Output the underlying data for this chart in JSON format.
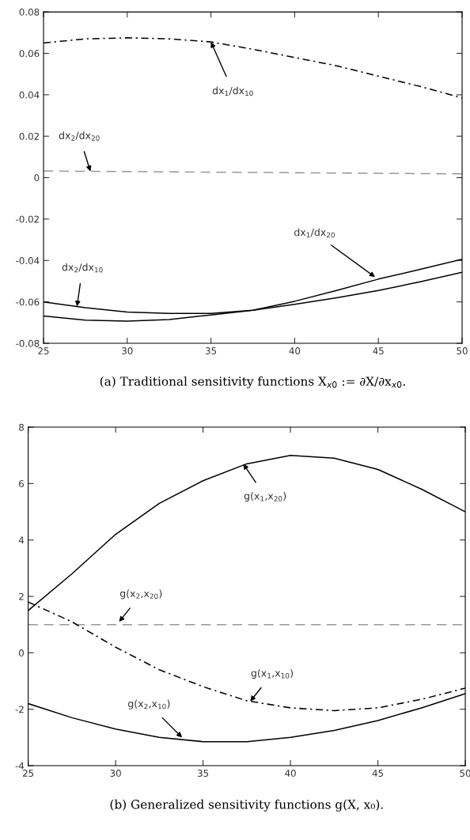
{
  "chart_data": [
    {
      "type": "line",
      "title": "(a) Traditional sensitivity functions X$_{x0}$ := ∂X/∂x$_{x0}$.",
      "xlim": [
        25,
        50
      ],
      "xticks": [
        25,
        30,
        35,
        40,
        45,
        50
      ],
      "ylim": [
        -0.08,
        0.08
      ],
      "yticks": [
        {
          "value": -0.08,
          "label": "-0.08"
        },
        {
          "value": -0.06,
          "label": "-0.06"
        },
        {
          "value": -0.04,
          "label": "-0.04"
        },
        {
          "value": -0.02,
          "label": "-0.02"
        },
        0,
        0.02,
        0.04,
        0.06,
        0.08
      ],
      "grid": false,
      "marker": "none",
      "series": [
        {
          "color": "#000000",
          "line_style": "dashdot",
          "x": [
            25,
            27.5,
            30,
            32.5,
            35,
            37.5,
            40,
            42.5,
            45,
            47.5,
            50
          ],
          "values": [
            0.065,
            0.067,
            0.0675,
            0.067,
            0.0655,
            0.062,
            0.058,
            0.054,
            0.049,
            0.044,
            0.0385
          ]
        },
        {
          "color": "#999999",
          "line_style": "dashed",
          "x": [
            25,
            50
          ],
          "values": [
            0.0032,
            0.0018
          ]
        },
        {
          "color": "#000000",
          "line_style": "solid",
          "x": [
            25,
            27.5,
            30,
            32.5,
            35,
            37.5,
            40,
            42.5,
            45,
            47.5,
            50
          ],
          "values": [
            -0.06,
            -0.0628,
            -0.0649,
            -0.0656,
            -0.0656,
            -0.064,
            -0.0612,
            -0.058,
            -0.0545,
            -0.0503,
            -0.0457
          ]
        },
        {
          "color": "#000000",
          "line_style": "solid",
          "x": [
            25,
            27.5,
            30,
            32.5,
            35,
            37.5,
            40,
            42.5,
            45,
            47.5,
            50
          ],
          "values": [
            -0.0668,
            -0.0688,
            -0.0693,
            -0.0685,
            -0.0663,
            -0.064,
            -0.0597,
            -0.0545,
            -0.049,
            -0.0443,
            -0.0394
          ]
        }
      ],
      "annotations": [
        {
          "text": "dx$_{1}$/dx$_{10}$",
          "x": 35,
          "y": 0.0655
        },
        {
          "text": "dx$_{2}$/dx$_{20}$",
          "x": 27.8,
          "y": 0.003
        },
        {
          "text": "dx$_{2}$/dx$_{10}$",
          "x": 27,
          "y": -0.0622
        },
        {
          "text": "dx$_{1}$/dx$_{20}$",
          "x": 44.8,
          "y": -0.048
        }
      ]
    },
    {
      "type": "line",
      "title": "(b) Generalized sensitivity functions g(X, x₀).",
      "xlim": [
        25,
        50
      ],
      "xticks": [
        25,
        30,
        35,
        40,
        45,
        50
      ],
      "ylim": [
        -4,
        8
      ],
      "yticks": [
        -4,
        -2,
        0,
        2,
        4,
        6,
        8
      ],
      "grid": false,
      "marker": "none",
      "series": [
        {
          "color": "#000000",
          "line_style": "solid",
          "x": [
            25,
            27.5,
            30,
            32.5,
            35,
            37.5,
            40,
            42.5,
            45,
            47.5,
            50
          ],
          "values": [
            1.5,
            2.8,
            4.2,
            5.3,
            6.1,
            6.7,
            7.0,
            6.9,
            6.5,
            5.8,
            5.0
          ]
        },
        {
          "color": "#999999",
          "line_style": "dashed",
          "x": [
            25,
            50
          ],
          "values": [
            1.0,
            1.0
          ]
        },
        {
          "color": "#000000",
          "line_style": "dashdot",
          "x": [
            25,
            27.5,
            30,
            32.5,
            35,
            37.5,
            40,
            42.5,
            45,
            47.5,
            50
          ],
          "values": [
            1.8,
            1.1,
            0.2,
            -0.6,
            -1.2,
            -1.7,
            -1.95,
            -2.05,
            -1.95,
            -1.65,
            -1.25
          ]
        },
        {
          "color": "#000000",
          "line_style": "solid",
          "x": [
            25,
            27.5,
            30,
            32.5,
            35,
            37.5,
            40,
            42.5,
            45,
            47.5,
            50
          ],
          "values": [
            -1.8,
            -2.3,
            -2.7,
            -3.0,
            -3.15,
            -3.15,
            -3.0,
            -2.75,
            -2.4,
            -1.95,
            -1.45
          ]
        }
      ],
      "annotations": [
        {
          "text": "g(x$_{1}$,x$_{20}$)",
          "x": 37.3,
          "y": 6.7
        },
        {
          "text": "g(x$_{2}$,x$_{20}$)",
          "x": 30.2,
          "y": 1.1
        },
        {
          "text": "g(x$_{1}$,x$_{10}$)",
          "x": 37.7,
          "y": -1.72
        },
        {
          "text": "g(x$_{2}$,x$_{10}$)",
          "x": 33.8,
          "y": -3.0
        }
      ]
    }
  ]
}
